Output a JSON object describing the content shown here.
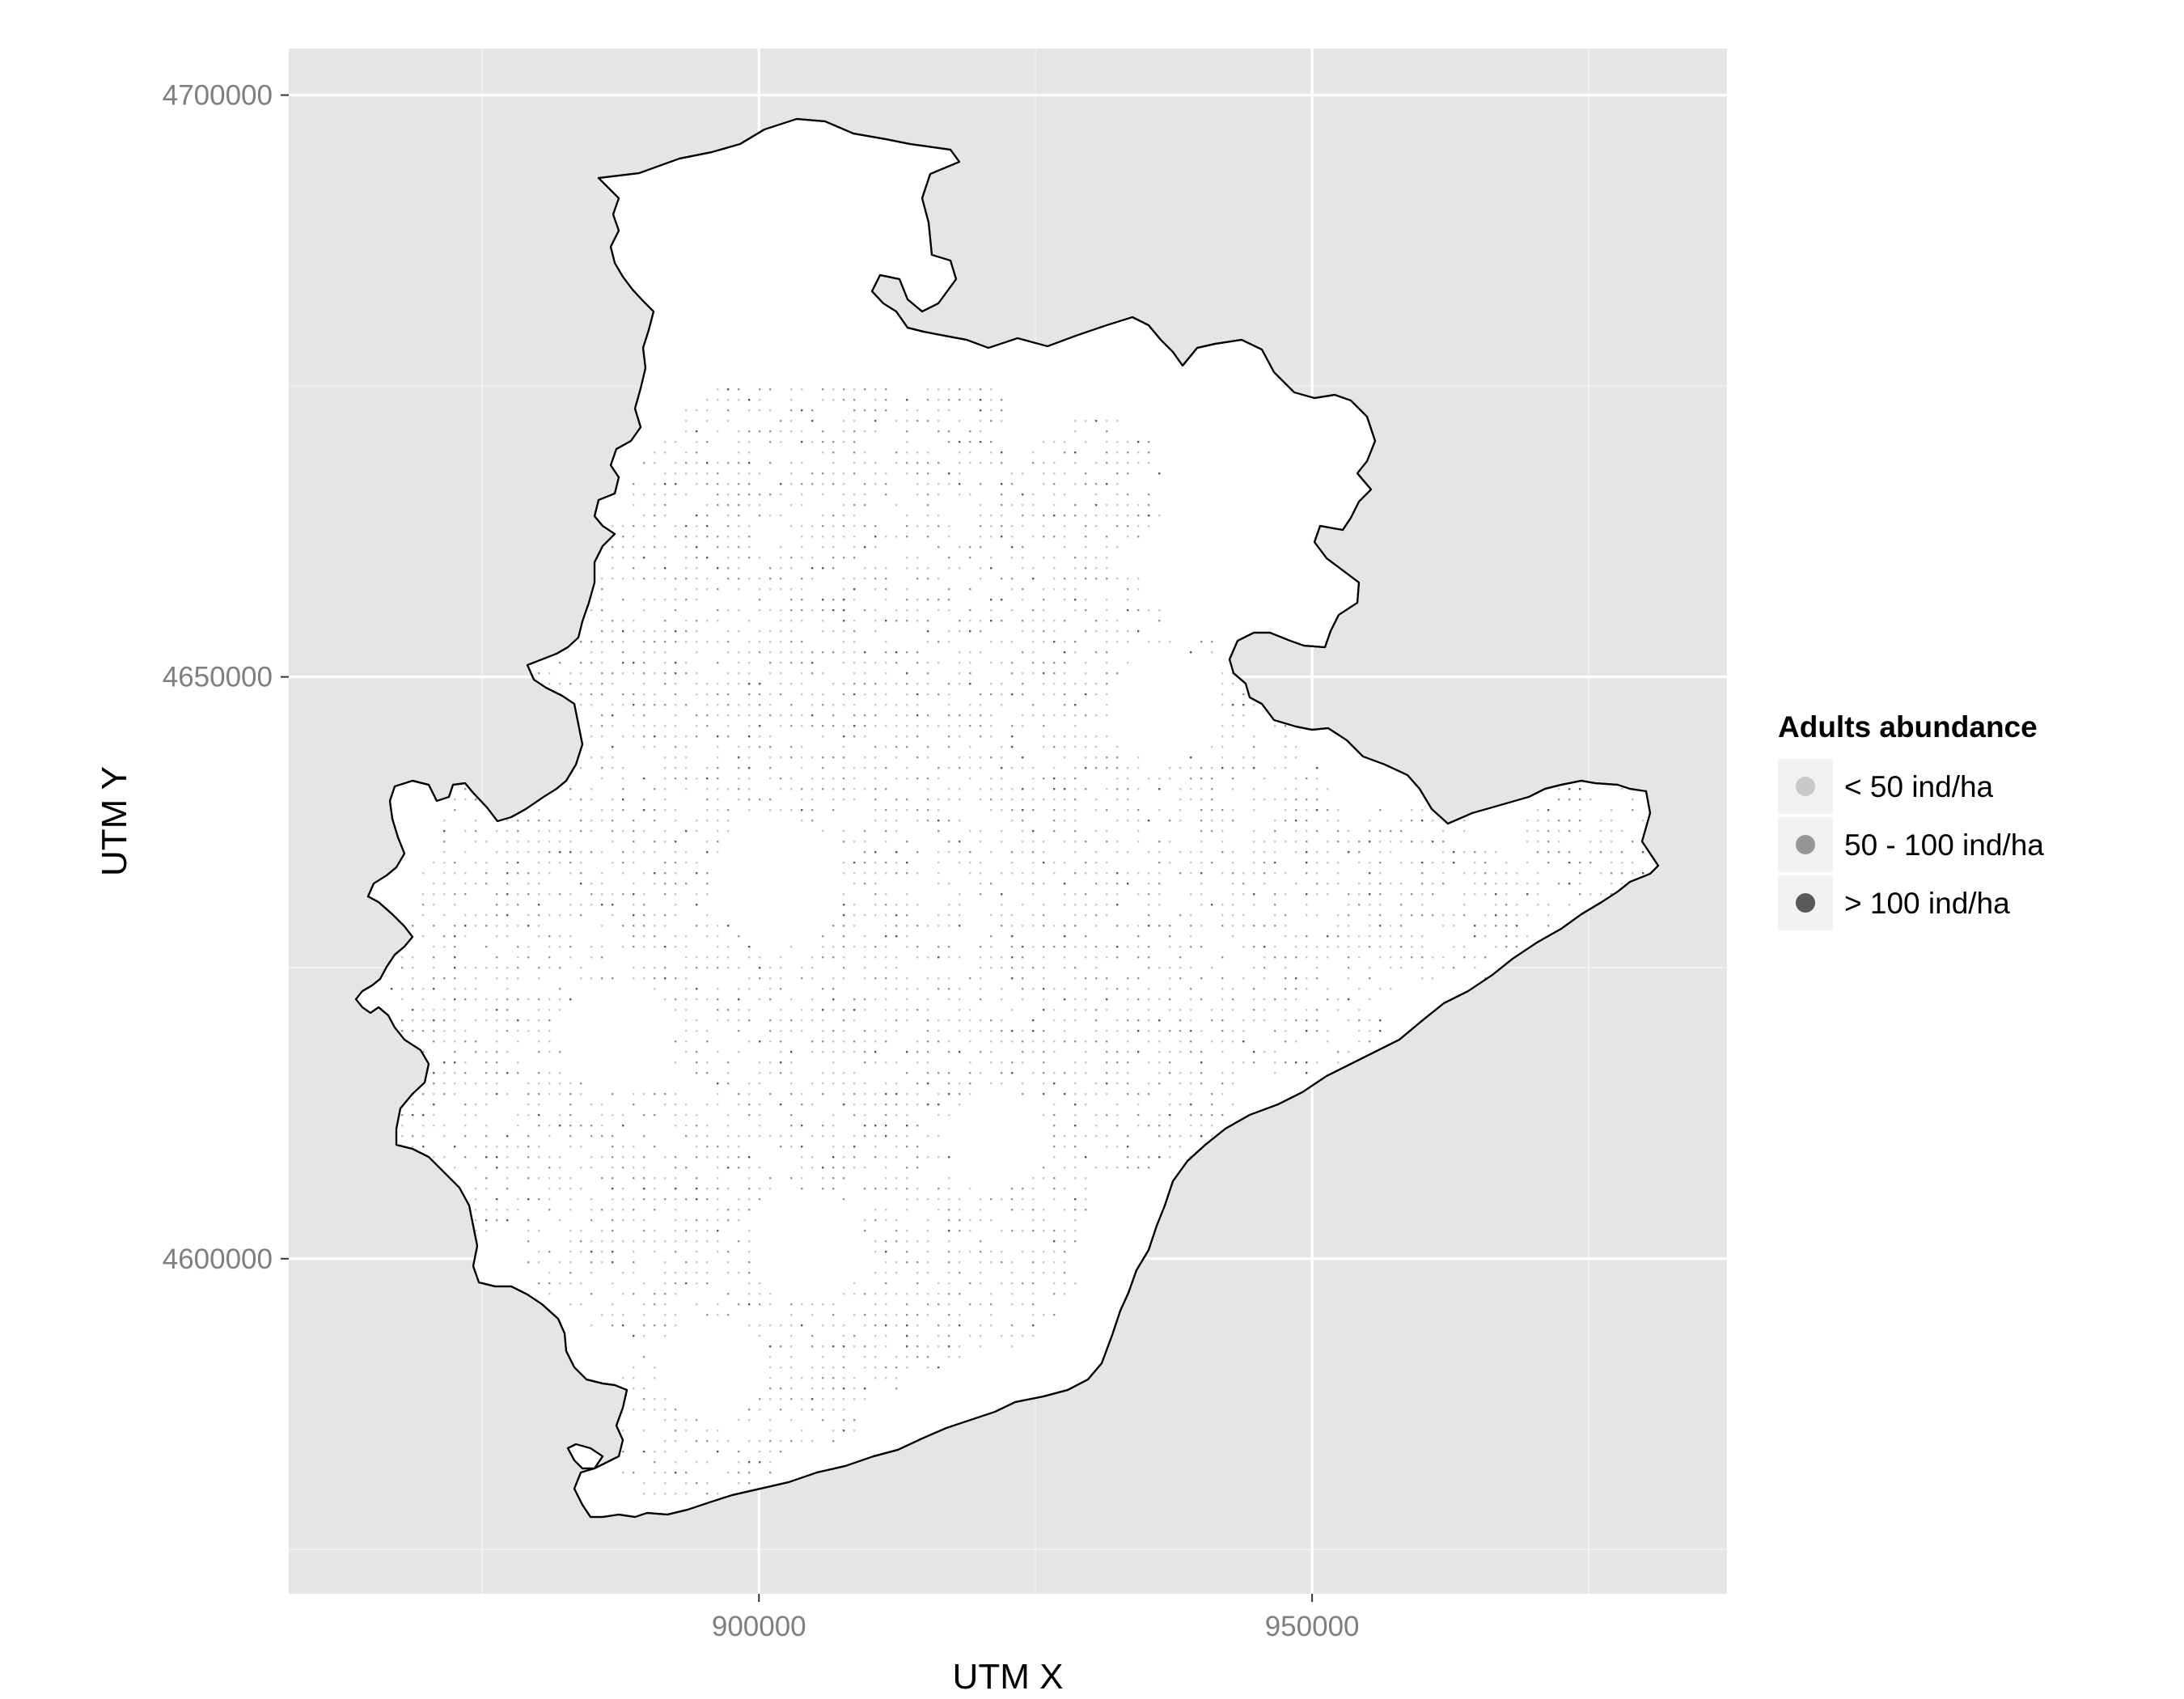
{
  "map": {
    "x_axis_title": "UTM X",
    "y_axis_title": "UTM Y",
    "x_ticks": [
      {
        "value": 900000,
        "label": "900000"
      },
      {
        "value": 950000,
        "label": "950000"
      }
    ],
    "y_ticks": [
      {
        "value": 4700000,
        "label": "4700000"
      },
      {
        "value": 4650000,
        "label": "4650000"
      },
      {
        "value": 4600000,
        "label": "4600000"
      }
    ],
    "x_range": [
      857500,
      987500
    ],
    "y_range": [
      4571200,
      4704000
    ],
    "panel_background": "#e5e5e5",
    "grid_color": "#ffffff",
    "region_fill": "#ffffff",
    "region_stroke": "#000000",
    "grid": true,
    "legend_placement": "right"
  },
  "legend": {
    "title": "Adults abundance",
    "items": [
      {
        "label": "< 50 ind/ha",
        "color": "#c8c8c8"
      },
      {
        "label": "50 - 100 ind/ha",
        "color": "#969696"
      },
      {
        "label": "> 100 ind/ha",
        "color": "#5a5a5a"
      }
    ]
  }
}
